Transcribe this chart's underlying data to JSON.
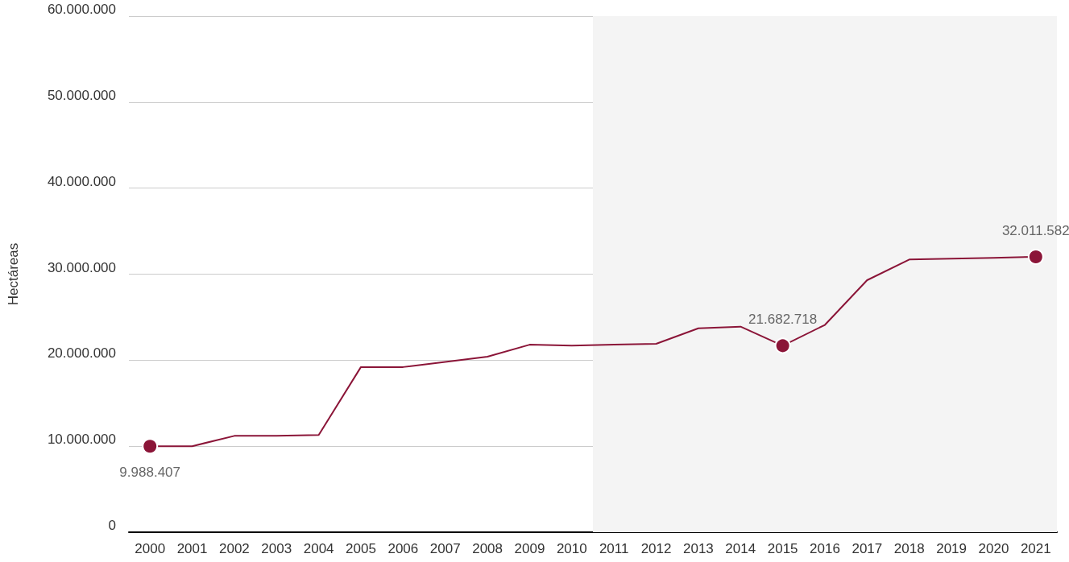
{
  "chart_data": {
    "type": "line",
    "ylabel": "Hectáreas",
    "categories": [
      "2000",
      "2001",
      "2002",
      "2003",
      "2004",
      "2005",
      "2006",
      "2007",
      "2008",
      "2009",
      "2010",
      "2011",
      "2012",
      "2013",
      "2014",
      "2015",
      "2016",
      "2017",
      "2018",
      "2019",
      "2020",
      "2021"
    ],
    "series": [
      {
        "color": "#8b1538",
        "values": [
          9988407,
          10000000,
          11200000,
          11200000,
          11300000,
          19200000,
          19200000,
          19800000,
          20400000,
          21800000,
          21700000,
          21800000,
          21900000,
          23700000,
          23900000,
          21682718,
          24100000,
          29300000,
          31700000,
          31800000,
          31900000,
          32011582
        ],
        "value_labels": [
          "9.988.407",
          null,
          null,
          null,
          null,
          null,
          null,
          null,
          null,
          null,
          null,
          null,
          null,
          null,
          null,
          "21.682.718",
          null,
          null,
          null,
          null,
          null,
          "32.011.582"
        ]
      }
    ],
    "ylim": [
      0,
      60000000
    ],
    "yticks": [
      0,
      {
        "value": 10000000,
        "label": "10.000.000"
      },
      {
        "value": 20000000,
        "label": "20.000.000"
      },
      {
        "value": 30000000,
        "label": "30.000.000"
      },
      {
        "value": 40000000,
        "label": "40.000.000"
      },
      {
        "value": 50000000,
        "label": "50.000.000"
      },
      {
        "value": 60000000,
        "label": "60.000.000"
      }
    ],
    "bands": [
      {
        "axis": "x",
        "from": "2011",
        "to": "2021",
        "color": "#f4f4f4"
      }
    ],
    "grid": "y",
    "line_style": "solid"
  }
}
